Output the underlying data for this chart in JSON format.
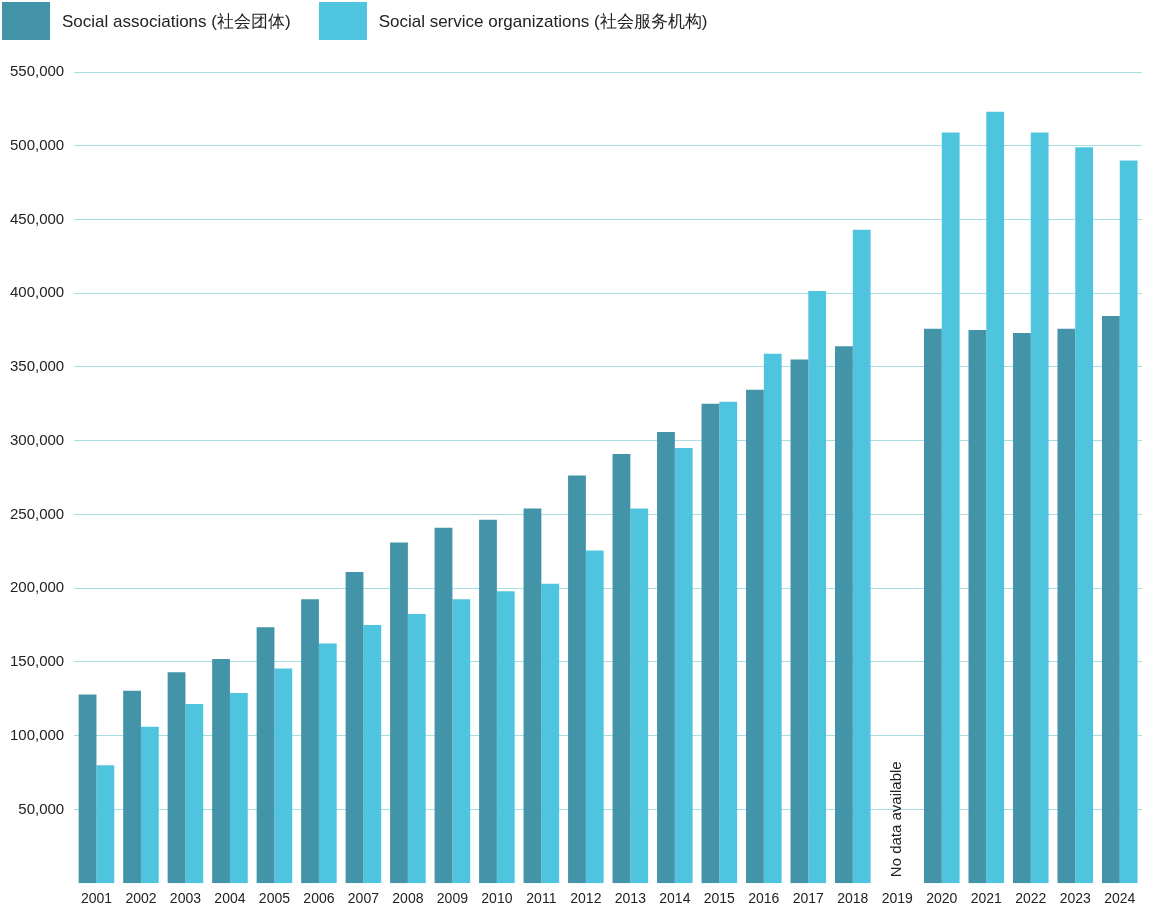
{
  "chart_data": {
    "type": "bar",
    "categories": [
      "2001",
      "2002",
      "2003",
      "2004",
      "2005",
      "2006",
      "2007",
      "2008",
      "2009",
      "2010",
      "2011",
      "2012",
      "2013",
      "2014",
      "2015",
      "2016",
      "2017",
      "2018",
      "2019",
      "2020",
      "2021",
      "2022",
      "2023",
      "2024"
    ],
    "series": [
      {
        "name": "Social associations (社会团体)",
        "color": "#4394a8",
        "values": [
          128000,
          130500,
          143000,
          152000,
          173500,
          192500,
          211000,
          231000,
          241000,
          246500,
          254000,
          276500,
          291000,
          306000,
          325000,
          334500,
          355000,
          364000,
          null,
          376000,
          375000,
          373000,
          376000,
          384500
        ]
      },
      {
        "name": "Social service organizations (社会服务机构)",
        "color": "#4fc4de",
        "values": [
          80000,
          106000,
          121500,
          129000,
          145500,
          162500,
          175000,
          182500,
          192500,
          198000,
          203000,
          225500,
          254000,
          295000,
          326500,
          359000,
          401500,
          443000,
          null,
          509000,
          523000,
          509000,
          499000,
          490000
        ]
      }
    ],
    "ylim": [
      0,
      550000
    ],
    "yticks": [
      {
        "value": 50000,
        "label": "50,000"
      },
      {
        "value": 100000,
        "label": "100,000"
      },
      {
        "value": 150000,
        "label": "150,000"
      },
      {
        "value": 200000,
        "label": "200,000"
      },
      {
        "value": 250000,
        "label": "250,000"
      },
      {
        "value": 300000,
        "label": "300,000"
      },
      {
        "value": 350000,
        "label": "350,000"
      },
      {
        "value": 400000,
        "label": "400,000"
      },
      {
        "value": 450000,
        "label": "450,000"
      },
      {
        "value": 500000,
        "label": "500,000"
      },
      {
        "value": 550000,
        "label": "550,000"
      }
    ],
    "grid": "y",
    "legend": "top left",
    "annotations": [
      "No data available"
    ]
  }
}
